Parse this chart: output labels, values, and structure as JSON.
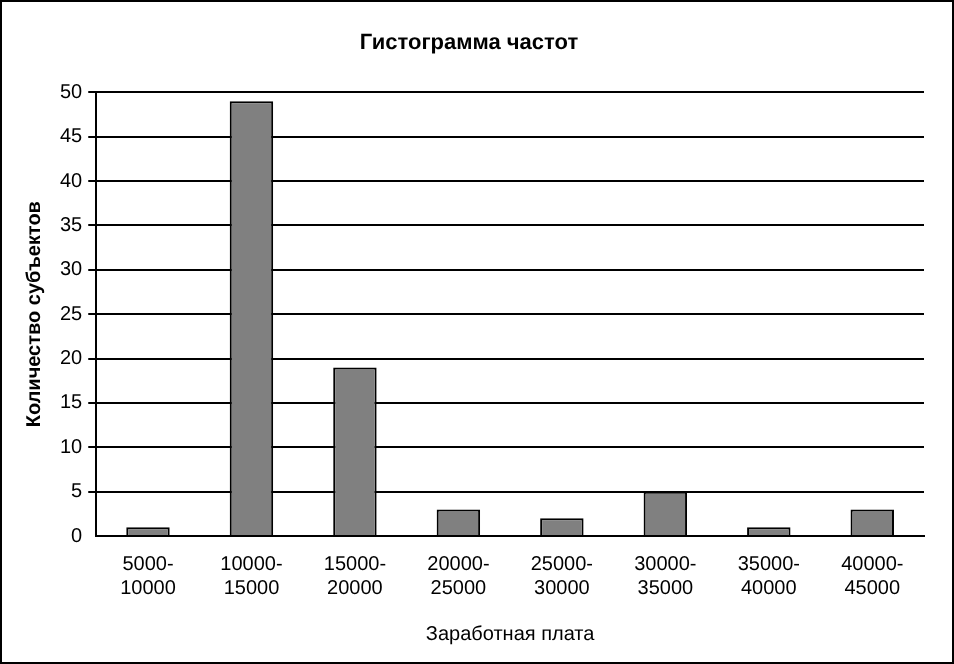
{
  "chart_data": {
    "type": "bar",
    "title": "Гистограмма частот",
    "xlabel": "Заработная плата",
    "ylabel": "Количество субъектов",
    "categories": [
      "5000-10000",
      "10000-15000",
      "15000-20000",
      "20000-25000",
      "25000-30000",
      "30000-35000",
      "35000-40000",
      "40000-45000"
    ],
    "values": [
      1,
      49,
      19,
      3,
      2,
      5,
      1,
      3
    ],
    "color": "#808080",
    "ylim": [
      0,
      50
    ],
    "yticks": [
      0,
      5,
      10,
      15,
      20,
      25,
      30,
      35,
      40,
      45,
      50
    ],
    "grid": "y",
    "legend": false
  }
}
